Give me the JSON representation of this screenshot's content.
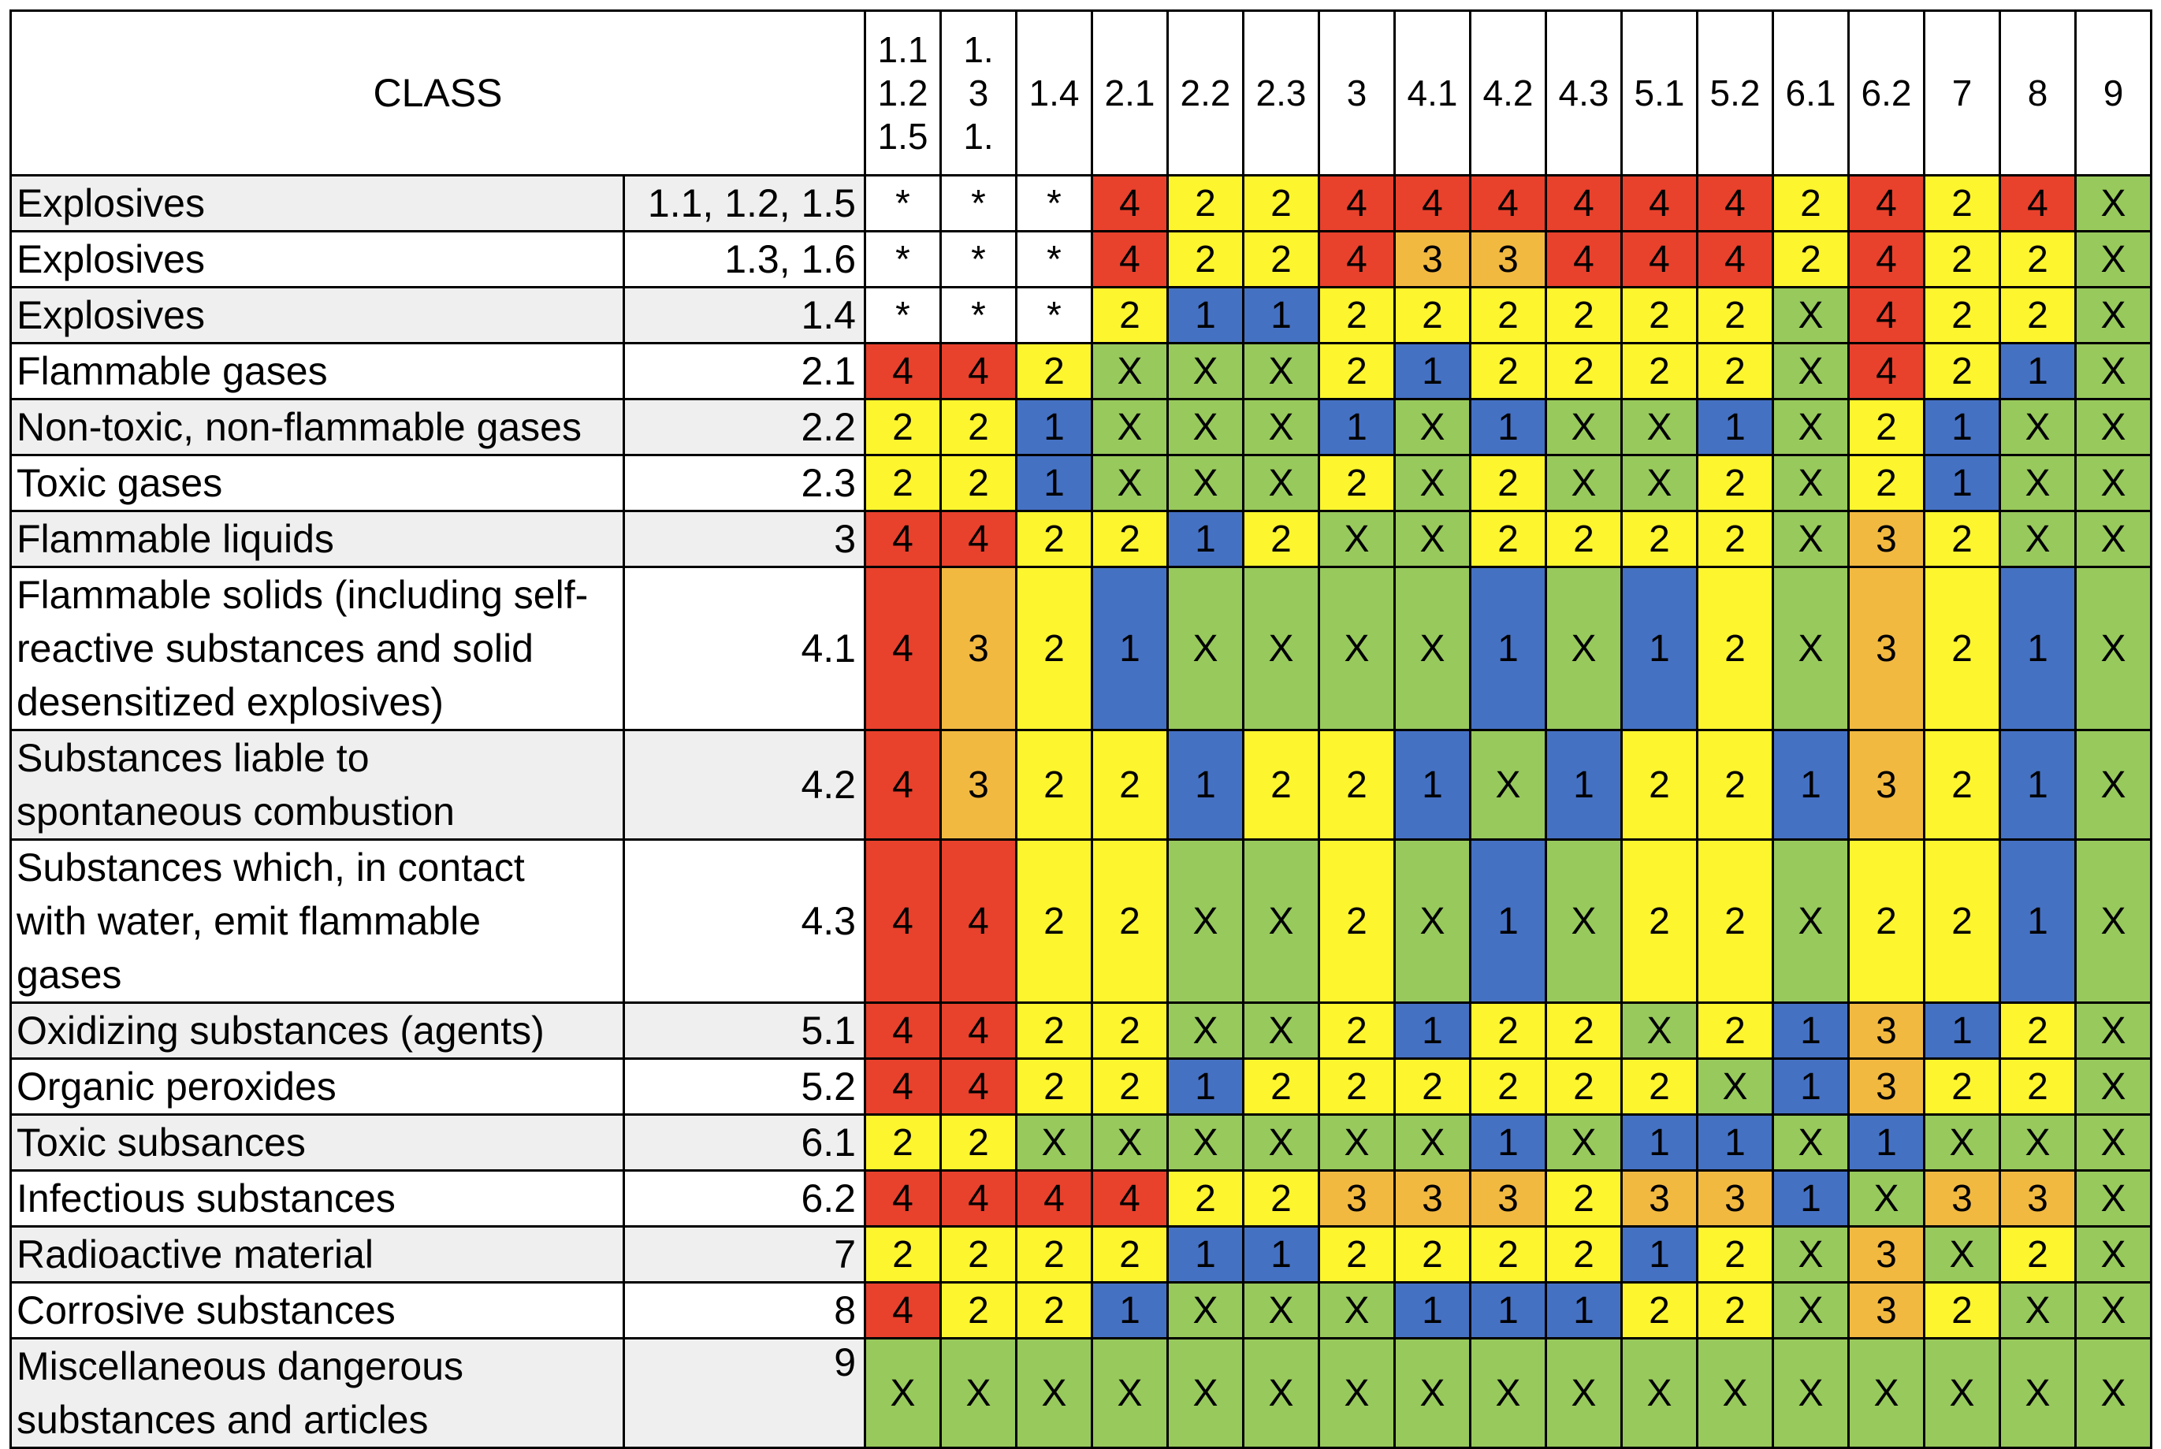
{
  "table": {
    "class_header": "CLASS",
    "columns": [
      "1.1\n1.2\n1.5",
      "1.\n3\n1.",
      "1.4",
      "2.1",
      "2.2",
      "2.3",
      "3",
      "4.1",
      "4.2",
      "4.3",
      "5.1",
      "5.2",
      "6.1",
      "6.2",
      "7",
      "8",
      "9"
    ],
    "colors": {
      "4": "#e8412c",
      "3": "#f2b941",
      "2": "#fdf52e",
      "1": "#4571c3",
      "X": "#98c95c",
      "*": "#ffffff"
    },
    "rows": [
      {
        "name": "Explosives",
        "code": "1.1, 1.2, 1.5",
        "cells": [
          "*",
          "*",
          "*",
          "4",
          "2",
          "2",
          "4",
          "4",
          "4",
          "4",
          "4",
          "4",
          "2",
          "4",
          "2",
          "4",
          "X"
        ]
      },
      {
        "name": "Explosives",
        "code": "1.3, 1.6",
        "cells": [
          "*",
          "*",
          "*",
          "4",
          "2",
          "2",
          "4",
          "3",
          "3",
          "4",
          "4",
          "4",
          "2",
          "4",
          "2",
          "2",
          "X"
        ]
      },
      {
        "name": "Explosives",
        "code": "1.4",
        "cells": [
          "*",
          "*",
          "*",
          "2",
          "1",
          "1",
          "2",
          "2",
          "2",
          "2",
          "2",
          "2",
          "X",
          "4",
          "2",
          "2",
          "X"
        ]
      },
      {
        "name": "Flammable gases",
        "code": "2.1",
        "cells": [
          "4",
          "4",
          "2",
          "X",
          "X",
          "X",
          "2",
          "1",
          "2",
          "2",
          "2",
          "2",
          "X",
          "4",
          "2",
          "1",
          "X"
        ]
      },
      {
        "name": "Non-toxic, non-flammable gases",
        "code": "2.2",
        "cells": [
          "2",
          "2",
          "1",
          "X",
          "X",
          "X",
          "1",
          "X",
          "1",
          "X",
          "X",
          "1",
          "X",
          "2",
          "1",
          "X",
          "X"
        ]
      },
      {
        "name": "Toxic gases",
        "code": "2.3",
        "cells": [
          "2",
          "2",
          "1",
          "X",
          "X",
          "X",
          "2",
          "X",
          "2",
          "X",
          "X",
          "2",
          "X",
          "2",
          "1",
          "X",
          "X"
        ]
      },
      {
        "name": "Flammable liquids",
        "code": "3",
        "cells": [
          "4",
          "4",
          "2",
          "2",
          "1",
          "2",
          "X",
          "X",
          "2",
          "2",
          "2",
          "2",
          "X",
          "3",
          "2",
          "X",
          "X"
        ]
      },
      {
        "name": "Flammable solids (including self-\nreactive substances and solid\ndesensitized explosives)",
        "code": "4.1",
        "cells": [
          "4",
          "3",
          "2",
          "1",
          "X",
          "X",
          "X",
          "X",
          "1",
          "X",
          "1",
          "2",
          "X",
          "3",
          "2",
          "1",
          "X"
        ]
      },
      {
        "name": "Substances liable to\nspontaneous combustion",
        "code": "4.2",
        "cells": [
          "4",
          "3",
          "2",
          "2",
          "1",
          "2",
          "2",
          "1",
          "X",
          "1",
          "2",
          "2",
          "1",
          "3",
          "2",
          "1",
          "X"
        ]
      },
      {
        "name": "Substances which, in contact\nwith water, emit flammable\ngases",
        "code": "4.3",
        "cells": [
          "4",
          "4",
          "2",
          "2",
          "X",
          "X",
          "2",
          "X",
          "1",
          "X",
          "2",
          "2",
          "X",
          "2",
          "2",
          "1",
          "X"
        ]
      },
      {
        "name": "Oxidizing substances (agents)",
        "code": "5.1",
        "cells": [
          "4",
          "4",
          "2",
          "2",
          "X",
          "X",
          "2",
          "1",
          "2",
          "2",
          "X",
          "2",
          "1",
          "3",
          "1",
          "2",
          "X"
        ]
      },
      {
        "name": "Organic peroxides",
        "code": "5.2",
        "cells": [
          "4",
          "4",
          "2",
          "2",
          "1",
          "2",
          "2",
          "2",
          "2",
          "2",
          "2",
          "X",
          "1",
          "3",
          "2",
          "2",
          "X"
        ]
      },
      {
        "name": "Toxic subsances",
        "code": "6.1",
        "cells": [
          "2",
          "2",
          "X",
          "X",
          "X",
          "X",
          "X",
          "X",
          "1",
          "X",
          "1",
          "1",
          "X",
          "1",
          "X",
          "X",
          "X"
        ]
      },
      {
        "name": "Infectious substances",
        "code": "6.2",
        "cells": [
          "4",
          "4",
          "4",
          "4",
          "2",
          "2",
          "3",
          "3",
          "3",
          "2",
          "3",
          "3",
          "1",
          "X",
          "3",
          "3",
          "X"
        ]
      },
      {
        "name": "Radioactive material",
        "code": "7",
        "cells": [
          "2",
          "2",
          "2",
          "2",
          "1",
          "1",
          "2",
          "2",
          "2",
          "2",
          "1",
          "2",
          "X",
          "3",
          "X",
          "2",
          "X"
        ]
      },
      {
        "name": "Corrosive substances",
        "code": "8",
        "cells": [
          "4",
          "2",
          "2",
          "1",
          "X",
          "X",
          "X",
          "1",
          "1",
          "1",
          "2",
          "2",
          "X",
          "3",
          "2",
          "X",
          "X"
        ]
      },
      {
        "name": "Miscellaneous dangerous\nsubstances and articles",
        "code": "9",
        "cells": [
          "X",
          "X",
          "X",
          "X",
          "X",
          "X",
          "X",
          "X",
          "X",
          "X",
          "X",
          "X",
          "X",
          "X",
          "X",
          "X",
          "X"
        ]
      }
    ]
  }
}
